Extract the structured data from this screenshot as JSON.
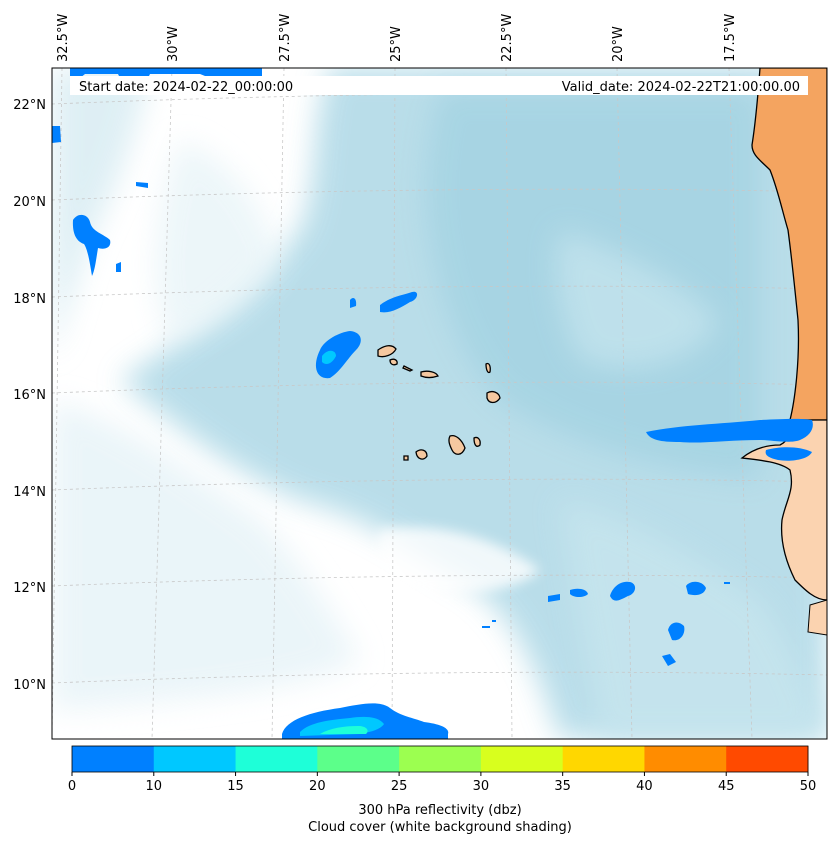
{
  "map": {
    "start_label": "Start date: 2024-02-22_00:00:00",
    "valid_label": "Valid_date: 2024-02-22T21:00:00.00",
    "lon_labels": [
      "32.5°W",
      "30°W",
      "27.5°W",
      "25°W",
      "22.5°W",
      "20°W",
      "17.5°W"
    ],
    "lat_labels": [
      "22°N",
      "20°N",
      "18°N",
      "16°N",
      "14°N",
      "12°N",
      "10°N"
    ]
  },
  "colorbar": {
    "ticks": [
      "0",
      "10",
      "15",
      "20",
      "25",
      "30",
      "35",
      "40",
      "45",
      "50"
    ],
    "colors": [
      "#0080ff",
      "#00c8ff",
      "#1effd8",
      "#5cff8a",
      "#9cff50",
      "#d8ff1e",
      "#ffd700",
      "#ff8c00",
      "#ff4a00"
    ],
    "label_line1": "300 hPa reflectivity (dbz)",
    "label_line2": "Cloud cover (white background shading)"
  },
  "colors": {
    "cloud_blue": "#add8e6",
    "land": "#f4a460",
    "reflectivity_low": "#0080ff",
    "reflectivity_mid": "#00c8ff"
  }
}
